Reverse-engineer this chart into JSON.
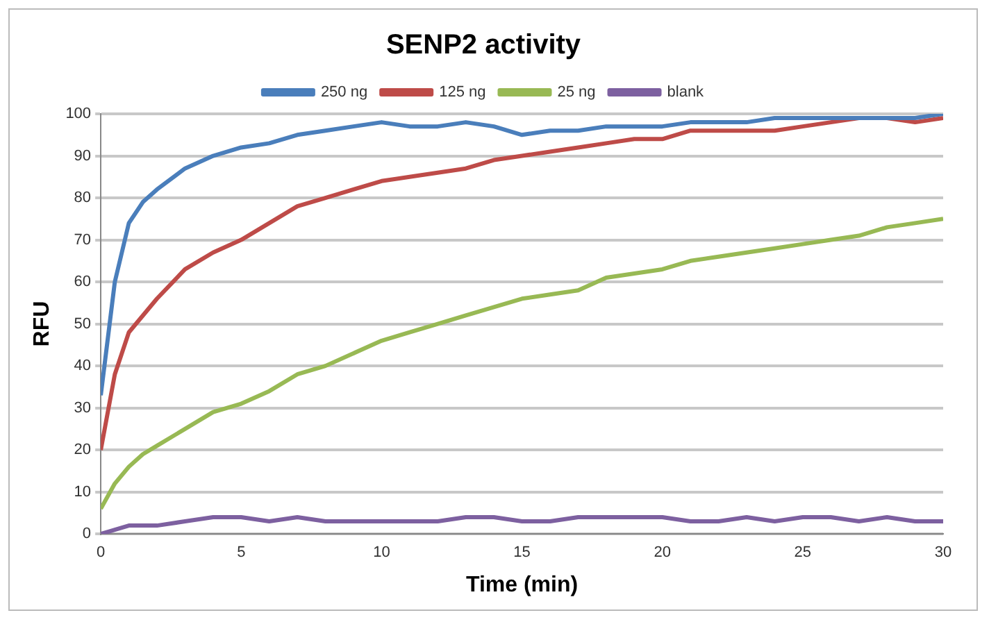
{
  "chart_data": {
    "type": "line",
    "title": "SENP2 activity",
    "xlabel": "Time (min)",
    "ylabel": "RFU",
    "x": [
      0,
      0.5,
      1,
      1.5,
      2,
      3,
      4,
      5,
      6,
      7,
      8,
      9,
      10,
      11,
      12,
      13,
      14,
      15,
      16,
      17,
      18,
      19,
      20,
      21,
      22,
      23,
      24,
      25,
      26,
      27,
      28,
      29,
      30
    ],
    "series": [
      {
        "name": "250 ng",
        "color": "#4a7ebb",
        "values": [
          33,
          60,
          74,
          79,
          82,
          87,
          90,
          92,
          93,
          95,
          96,
          97,
          98,
          97,
          97,
          98,
          97,
          95,
          96,
          96,
          97,
          97,
          97,
          98,
          98,
          98,
          99,
          99,
          99,
          99,
          99,
          99,
          100
        ]
      },
      {
        "name": "125 ng",
        "color": "#be4b48",
        "values": [
          20,
          38,
          48,
          52,
          56,
          63,
          67,
          70,
          74,
          78,
          80,
          82,
          84,
          85,
          86,
          87,
          89,
          90,
          91,
          92,
          93,
          94,
          94,
          96,
          96,
          96,
          96,
          97,
          98,
          99,
          99,
          98,
          99
        ]
      },
      {
        "name": "25 ng",
        "color": "#98b954",
        "values": [
          6,
          12,
          16,
          19,
          21,
          25,
          29,
          31,
          34,
          38,
          40,
          43,
          46,
          48,
          50,
          52,
          54,
          56,
          57,
          58,
          61,
          62,
          63,
          65,
          66,
          67,
          68,
          69,
          70,
          71,
          73,
          74,
          75
        ]
      },
      {
        "name": "blank",
        "color": "#7d60a0",
        "values": [
          0,
          1,
          2,
          2,
          2,
          3,
          4,
          4,
          3,
          4,
          3,
          3,
          3,
          3,
          3,
          4,
          4,
          3,
          3,
          4,
          4,
          4,
          4,
          3,
          3,
          4,
          3,
          4,
          4,
          3,
          4,
          3,
          3
        ]
      }
    ],
    "xlim": [
      0,
      30
    ],
    "xticks": [
      0,
      5,
      10,
      15,
      20,
      25,
      30
    ],
    "ylim": [
      0,
      100
    ],
    "yticks": [
      0,
      10,
      20,
      30,
      40,
      50,
      60,
      70,
      80,
      90,
      100
    ],
    "grid": "y",
    "legend": "top",
    "marker": "none",
    "line_style": "solid"
  }
}
